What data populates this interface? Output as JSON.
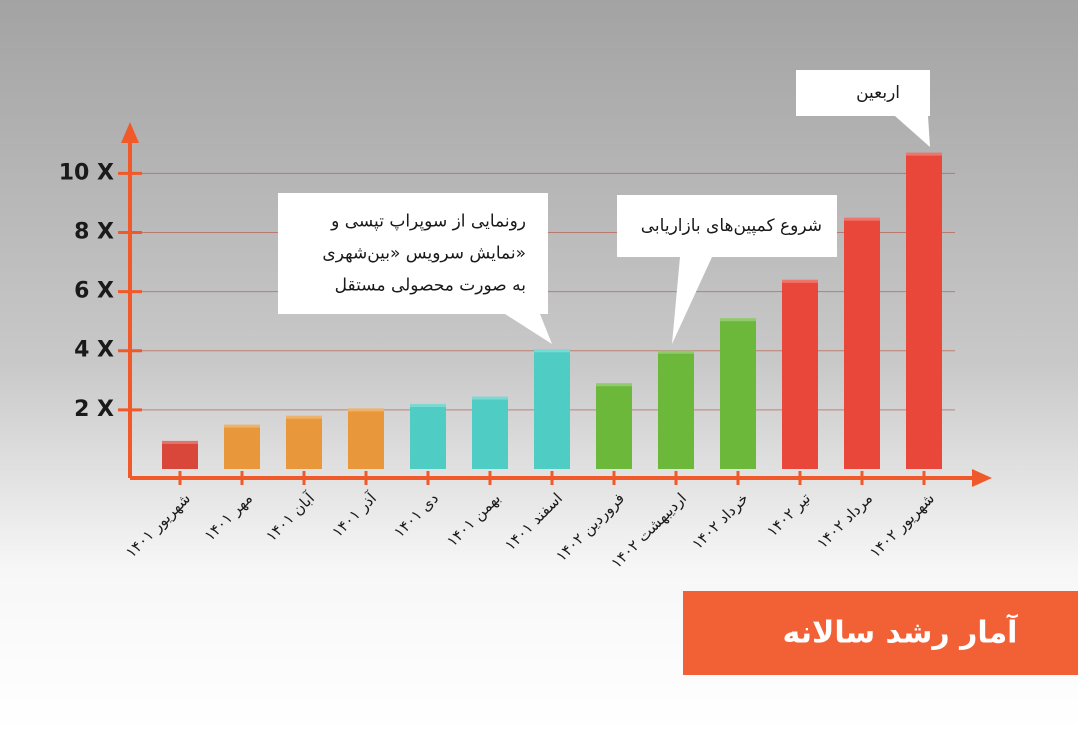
{
  "chart_data": {
    "type": "bar",
    "title": "آمار رشد سالانه",
    "categories": [
      "شهریور ۱۴۰۱",
      "مهر ۱۴۰۱",
      "آبان ۱۴۰۱",
      "آذر ۱۴۰۱",
      "دی ۱۴۰۱",
      "بهمن ۱۴۰۱",
      "اسفند ۱۴۰۱",
      "فروردین ۱۴۰۲",
      "اردیبهشت ۱۴۰۲",
      "خرداد ۱۴۰۲",
      "تیر ۱۴۰۲",
      "مرداد ۱۴۰۲",
      "شهریور ۱۴۰۲"
    ],
    "values": [
      0.95,
      1.5,
      1.8,
      2.05,
      2.2,
      2.45,
      4.05,
      2.9,
      4.0,
      5.1,
      6.4,
      8.5,
      10.7
    ],
    "colors": [
      "#d9473a",
      "#e8983a",
      "#e8983a",
      "#e8983a",
      "#4fcdc5",
      "#4fcdc5",
      "#4fcdc5",
      "#6cb83b",
      "#6cb83b",
      "#6cb83b",
      "#e9473a",
      "#e9473a",
      "#e9473a"
    ],
    "ylim": [
      0,
      11.5
    ],
    "yticks": [
      {
        "value": 2,
        "label": "2 X"
      },
      {
        "value": 4,
        "label": "4 X"
      },
      {
        "value": 6,
        "label": "6 X"
      },
      {
        "value": 8,
        "label": "8 X"
      },
      {
        "value": 10,
        "label": "10 X"
      }
    ],
    "grid": true,
    "annotations": [
      {
        "lines": [
          "رونمایی از سوپراپ تپسی و",
          "نمایش سرویس «بین‌شهری»",
          "به صورت محصولی مستقل"
        ]
      },
      {
        "lines": [
          "شروع کمپین‌های بازاریابی"
        ]
      },
      {
        "lines": [
          "اربعین"
        ]
      }
    ]
  }
}
